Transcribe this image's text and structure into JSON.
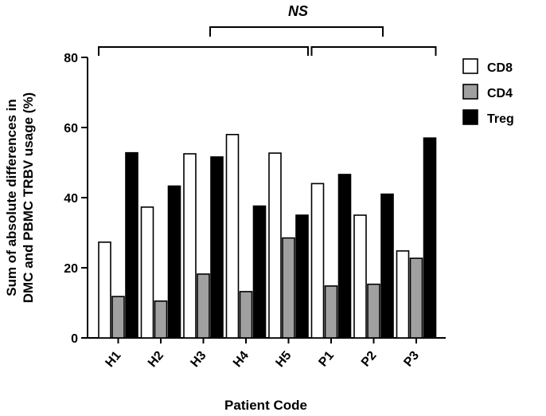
{
  "chart_data": {
    "type": "bar",
    "categories": [
      "H1",
      "H2",
      "H3",
      "H4",
      "H5",
      "P1",
      "P2",
      "P3"
    ],
    "series": [
      {
        "name": "CD8",
        "values": [
          27.3,
          37.3,
          52.5,
          58.0,
          52.7,
          44.0,
          35.0,
          24.8
        ],
        "color": "#ffffff"
      },
      {
        "name": "CD4",
        "values": [
          11.8,
          10.5,
          18.2,
          13.2,
          28.5,
          14.8,
          15.3,
          22.7
        ],
        "color": "#a0a0a0"
      },
      {
        "name": "Treg",
        "values": [
          52.8,
          43.3,
          51.6,
          37.6,
          35.0,
          46.6,
          41.0,
          57.0
        ],
        "color": "#000000"
      }
    ],
    "xlabel": "Patient Code",
    "ylabel": [
      "Sum of absolute differences in",
      "DMC and PBMC TRBV usage (%)"
    ],
    "ylim": [
      0,
      80
    ],
    "yticks": [
      0,
      20,
      40,
      60,
      80
    ],
    "legend_position": "top-right",
    "grid": false,
    "annotations": {
      "significance_label": "NS",
      "brackets": [
        {
          "from": "H1",
          "to": "H5"
        },
        {
          "from": "P1",
          "to": "P3"
        },
        {
          "from": "H3",
          "to": "P2"
        }
      ]
    }
  }
}
